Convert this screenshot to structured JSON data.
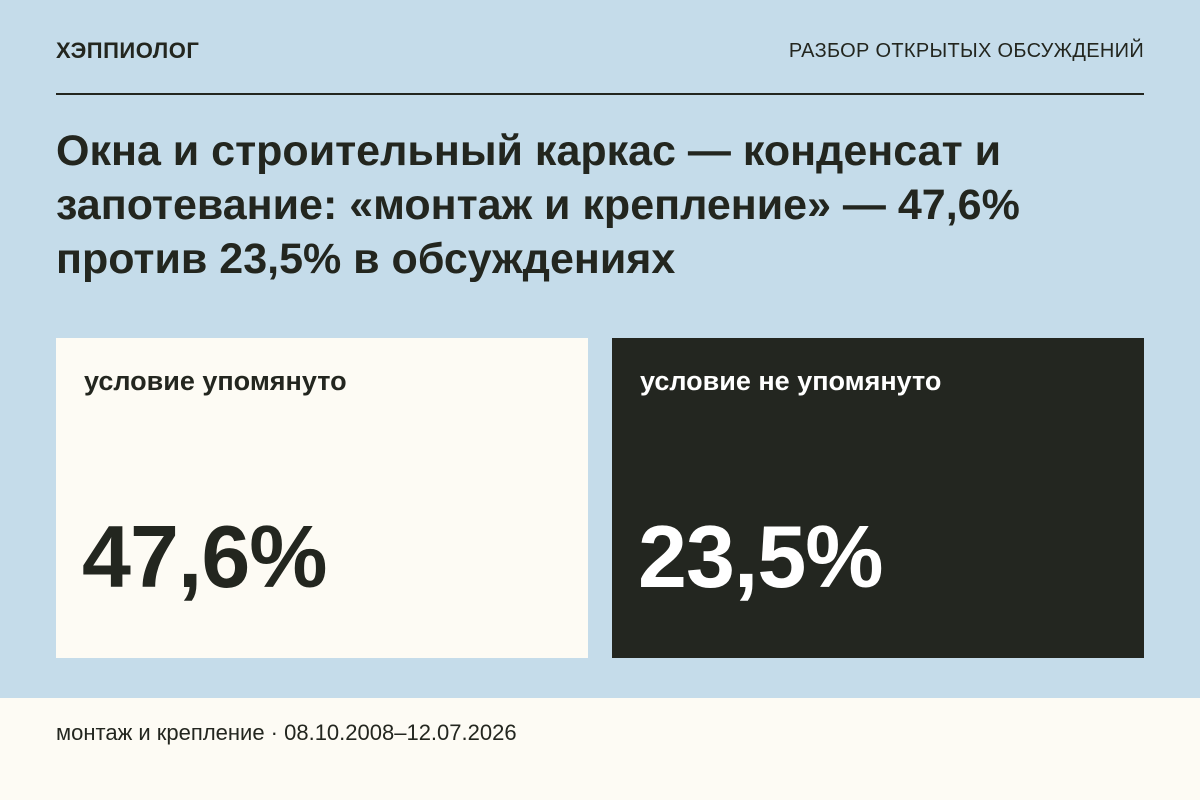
{
  "header": {
    "brand": "ХЭППИОЛОГ",
    "section": "РАЗБОР ОТКРЫТЫХ ОБСУЖДЕНИЙ"
  },
  "headline": "Окна и строительный каркас — конденсат и запотевание: «монтаж и крепление» — 47,6% против 23,5% в обсуждениях",
  "cards": [
    {
      "label": "условие упомянуто",
      "value": "47,6%"
    },
    {
      "label": "условие не упомянуто",
      "value": "23,5%"
    }
  ],
  "footer": {
    "text": "монтаж и крепление · 08.10.2008–12.07.2026"
  },
  "colors": {
    "background": "#c5dcea",
    "light_card": "#fdfbf4",
    "dark_card": "#232620",
    "text_dark": "#23261f",
    "text_light": "#ffffff"
  }
}
